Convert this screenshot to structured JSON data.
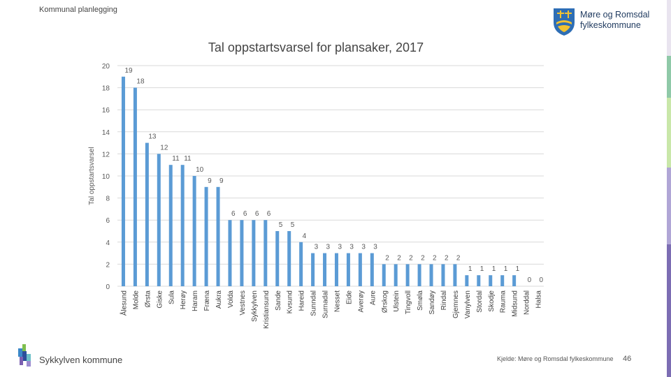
{
  "header": {
    "title": "Kommunal planlegging"
  },
  "logo": {
    "line1": "Møre og Romsdal",
    "line2": "fylkeskommune"
  },
  "footer": {
    "organization": "Sykkylven kommune",
    "source": "Kjelde: Møre og Romsdal fylkeskommune",
    "page_number": "46"
  },
  "colors": {
    "bar": "#5b9bd5",
    "grid": "#d9d9d9",
    "text": "#595959"
  },
  "chart_data": {
    "type": "bar",
    "title": "Tal oppstartsvarsel for plansaker, 2017",
    "xlabel": "",
    "ylabel": "Tal oppstartsvarsel",
    "ylim": [
      0,
      20
    ],
    "yticks": [
      0,
      2,
      4,
      6,
      8,
      10,
      12,
      14,
      16,
      18,
      20
    ],
    "grid": true,
    "data_labels": true,
    "categories": [
      "Ålesund",
      "Molde",
      "Ørsta",
      "Giske",
      "Sula",
      "Herøy",
      "Haram",
      "Fræna",
      "Aukra",
      "Volda",
      "Vestnes",
      "Sykkylven",
      "Kristiansund",
      "Sande",
      "Kvsund",
      "Hareid",
      "Sunndal",
      "Surnadal",
      "Nesset",
      "Eide",
      "Averøy",
      "Aure",
      "Ørskog",
      "Ulstein",
      "Tingvoll",
      "Smøla",
      "Sandøy",
      "Rindal",
      "Gjemnes",
      "Vanylven",
      "Stordal",
      "Skodje",
      "Rauma",
      "Midsund",
      "Norddal",
      "Halsa"
    ],
    "values": [
      19,
      18,
      13,
      12,
      11,
      11,
      10,
      9,
      9,
      6,
      6,
      6,
      6,
      5,
      5,
      4,
      3,
      3,
      3,
      3,
      3,
      3,
      2,
      2,
      2,
      2,
      2,
      2,
      2,
      1,
      1,
      1,
      1,
      1,
      0,
      0
    ]
  }
}
